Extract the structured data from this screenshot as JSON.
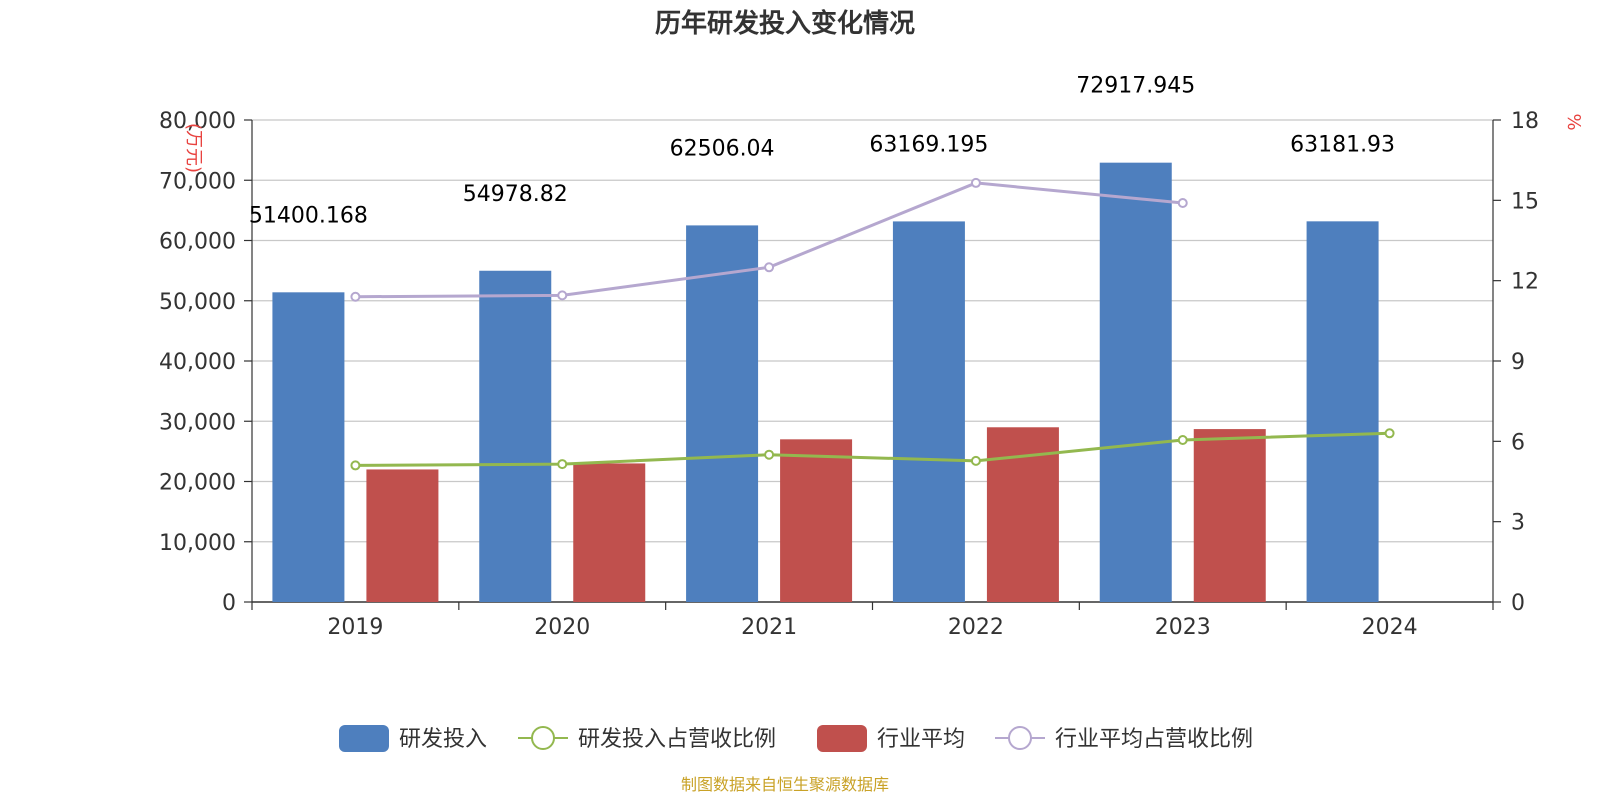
{
  "chart_data": {
    "type": "bar",
    "title": "历年研发投入变化情况",
    "categories": [
      "2019",
      "2020",
      "2021",
      "2022",
      "2023",
      "2024"
    ],
    "y_left": {
      "unit_label": "(万元)",
      "ylim": [
        0,
        80000
      ],
      "ticks": [
        "0",
        "10,000",
        "20,000",
        "30,000",
        "40,000",
        "50,000",
        "60,000",
        "70,000",
        "80,000"
      ]
    },
    "y_right": {
      "unit_label": "%",
      "ylim": [
        0,
        18
      ],
      "ticks": [
        "0",
        "3",
        "6",
        "9",
        "12",
        "15",
        "18"
      ]
    },
    "series": [
      {
        "name": "研发投入",
        "type": "bar",
        "axis": "left",
        "color": "#4e7fbe",
        "values": [
          51400.168,
          54978.82,
          62506.04,
          63169.195,
          72917.945,
          63181.93
        ],
        "labels": [
          "51400.168",
          "54978.82",
          "62506.04",
          "63169.195",
          "72917.945",
          "63181.93"
        ]
      },
      {
        "name": "研发投入占营收比例",
        "type": "line",
        "axis": "right",
        "color": "#93b84f",
        "values": [
          5.1,
          5.15,
          5.5,
          5.27,
          6.05,
          6.3
        ]
      },
      {
        "name": "行业平均",
        "type": "bar",
        "axis": "left",
        "color": "#c0504d",
        "values": [
          22000,
          23000,
          27000,
          29000,
          28700,
          null
        ]
      },
      {
        "name": "行业平均占营收比例",
        "type": "line",
        "axis": "right",
        "color": "#b5a7cf",
        "values": [
          11.4,
          11.45,
          12.5,
          15.65,
          14.9,
          null
        ]
      }
    ],
    "grid": true,
    "legend_position": "bottom"
  },
  "footer": {
    "source": "制图数据来自恒生聚源数据库"
  }
}
